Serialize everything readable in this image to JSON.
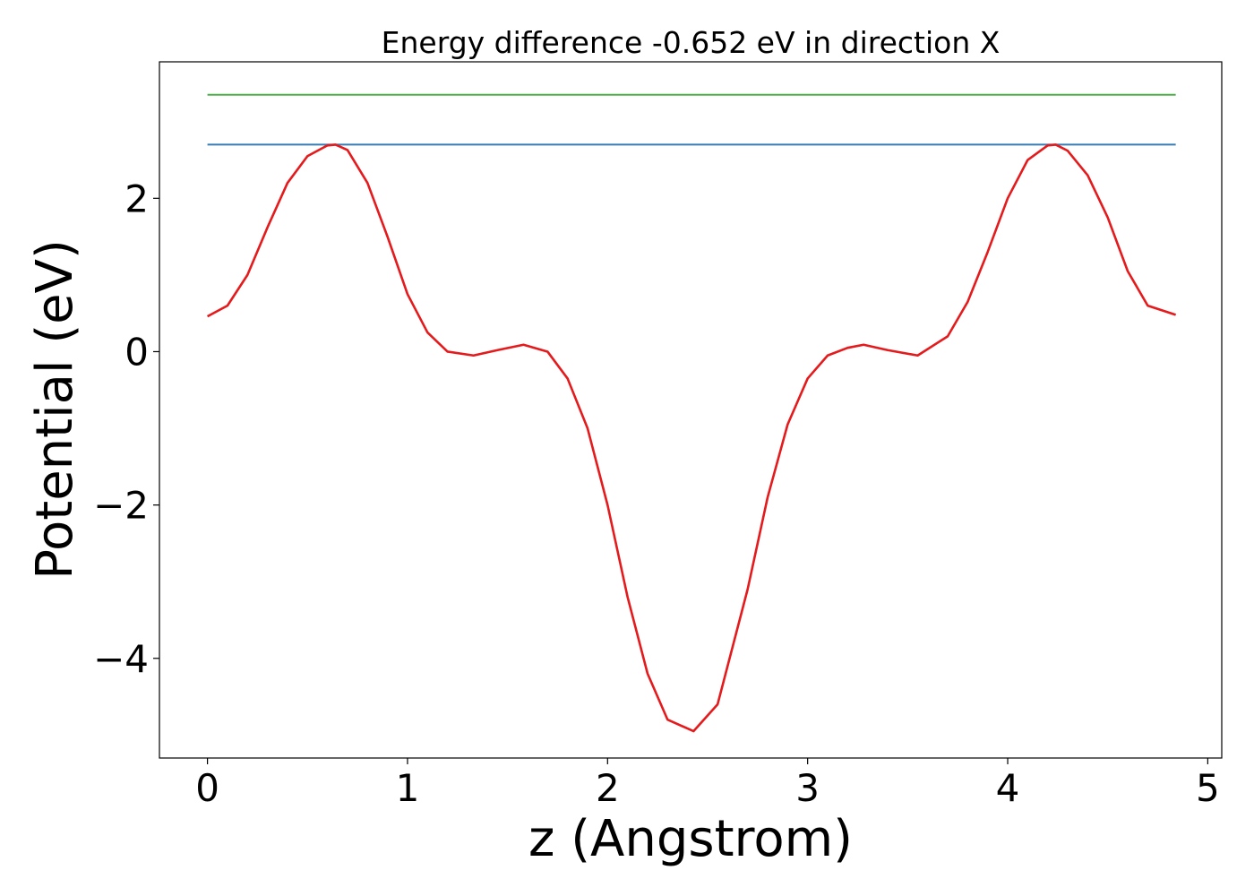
{
  "chart_data": {
    "type": "line",
    "title": "Energy difference -0.652 eV in direction X",
    "xlabel": "z (Angstrom)",
    "ylabel": "Potential (eV)",
    "xlim": [
      -0.24,
      5.07
    ],
    "ylim": [
      -5.3,
      3.78
    ],
    "xticks": [
      0,
      1,
      2,
      3,
      4,
      5
    ],
    "xtick_labels": [
      "0",
      "1",
      "2",
      "3",
      "4",
      "5"
    ],
    "yticks": [
      2,
      0,
      -2,
      -4
    ],
    "ytick_labels": [
      "2",
      "0",
      "−2",
      "−4"
    ],
    "grid": false,
    "legend": "none",
    "series": [
      {
        "color": "#e41a1c",
        "x": [
          0,
          0.1,
          0.2,
          0.3,
          0.4,
          0.5,
          0.6,
          0.64,
          0.7,
          0.8,
          0.9,
          1.0,
          1.1,
          1.2,
          1.33,
          1.45,
          1.58,
          1.7,
          1.8,
          1.9,
          2.0,
          2.1,
          2.2,
          2.3,
          2.43,
          2.55,
          2.7,
          2.8,
          2.9,
          3.0,
          3.1,
          3.2,
          3.28,
          3.4,
          3.55,
          3.7,
          3.8,
          3.9,
          4.0,
          4.1,
          4.2,
          4.24,
          4.3,
          4.4,
          4.5,
          4.6,
          4.7,
          4.84
        ],
        "y": [
          0.46,
          0.6,
          1.0,
          1.62,
          2.2,
          2.55,
          2.69,
          2.7,
          2.63,
          2.2,
          1.5,
          0.75,
          0.25,
          0.0,
          -0.05,
          0.02,
          0.09,
          0.0,
          -0.35,
          -1.0,
          -2.0,
          -3.2,
          -4.2,
          -4.8,
          -4.95,
          -4.6,
          -3.1,
          -1.9,
          -0.95,
          -0.35,
          -0.05,
          0.05,
          0.09,
          0.02,
          -0.05,
          0.2,
          0.65,
          1.3,
          2.0,
          2.5,
          2.69,
          2.7,
          2.62,
          2.3,
          1.75,
          1.05,
          0.6,
          0.48
        ]
      },
      {
        "color": "#377eb8",
        "x": [
          0,
          4.84
        ],
        "y": [
          2.7,
          2.7
        ]
      },
      {
        "color": "#4daf4a",
        "x": [
          0,
          4.84
        ],
        "y": [
          3.35,
          3.35
        ]
      }
    ]
  }
}
